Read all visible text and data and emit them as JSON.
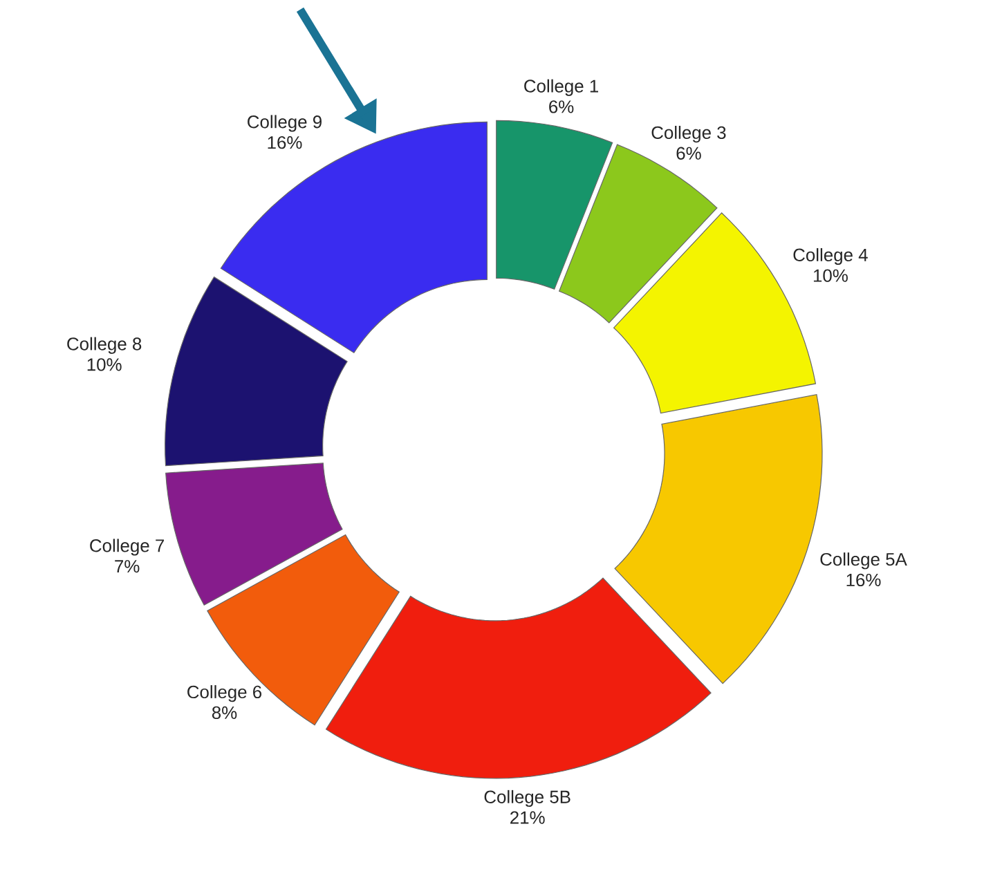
{
  "chart_data": {
    "type": "donut",
    "categories": [
      "College 1",
      "College 3",
      "College 4",
      "College 5A",
      "College 5B",
      "College 6",
      "College 7",
      "College 8",
      "College 9"
    ],
    "values": [
      6,
      6,
      10,
      16,
      21,
      8,
      7,
      10,
      16
    ],
    "value_labels": [
      "6%",
      "6%",
      "10%",
      "16%",
      "21%",
      "8%",
      "7%",
      "10%",
      "16%"
    ],
    "colors": [
      "#17956a",
      "#8cc81c",
      "#f4f400",
      "#f7c800",
      "#f01e0e",
      "#f25c0c",
      "#861c8c",
      "#1c1270",
      "#3a2cf0"
    ]
  }
}
